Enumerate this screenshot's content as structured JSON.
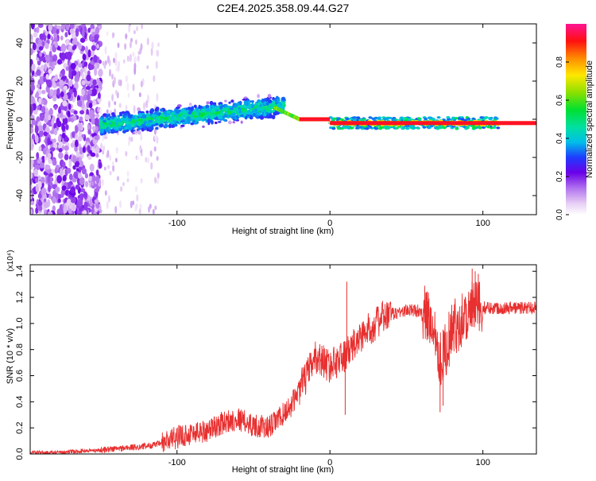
{
  "title": "C2E4.2025.358.09.44.G27",
  "chart_data": [
    {
      "type": "heatmap",
      "title": "",
      "xlabel": "Height of straight line (km)",
      "ylabel": "Frequency (Hz)",
      "xlim": [
        -196,
        135
      ],
      "ylim": [
        -50,
        50
      ],
      "xticks": [
        -100,
        0,
        100
      ],
      "xticklabels": [
        "-100",
        "0",
        "100"
      ],
      "yticks": [
        -40,
        -20,
        0,
        20,
        40
      ],
      "yticklabels": [
        "-40",
        "-20",
        "0",
        "20",
        "40"
      ],
      "colorbar": {
        "label": "Normalized spectral amplitude",
        "range": [
          0,
          1
        ],
        "ticks": [
          0.0,
          0.2,
          0.4,
          0.6,
          0.8
        ],
        "ticklabels": [
          "0.0",
          "0.2",
          "0.4",
          "0.6",
          "0.8"
        ]
      },
      "regions": [
        {
          "name": "noise",
          "x": [
            -196,
            -150
          ],
          "f_range": [
            -50,
            50
          ],
          "amplitude": [
            0.05,
            0.22
          ]
        },
        {
          "name": "sparse",
          "x": [
            -150,
            -112
          ],
          "f_range": [
            -50,
            50
          ],
          "amplitude": [
            0.02,
            0.1
          ]
        },
        {
          "name": "scattered-band",
          "x": [
            -150,
            -30
          ],
          "f_center_start": -3,
          "f_center_end": 7,
          "f_halfwidth": 7,
          "amplitude": [
            0.2,
            0.55
          ]
        },
        {
          "name": "doppler-trace",
          "x": [
            -36,
            -20
          ],
          "f_center_start": 6,
          "f_center_end": 0,
          "amplitude": [
            0.5,
            0.7
          ]
        },
        {
          "name": "tone",
          "x": [
            -20,
            0
          ],
          "f_center": 0,
          "amplitude": 0.95
        },
        {
          "name": "tone",
          "x": [
            0,
            135
          ],
          "f_center": -2,
          "amplitude": 0.95
        },
        {
          "name": "tone-halo",
          "x": [
            0,
            110
          ],
          "f_center": -2,
          "f_halfwidth": 3,
          "amplitude": [
            0.3,
            0.55
          ]
        }
      ]
    },
    {
      "type": "line",
      "title": "",
      "xlabel": "Height of straight line (km)",
      "ylabel": "SNR (10 * v/v)",
      "ylabel_multiplier": "(x10⁴)",
      "xlim": [
        -196,
        135
      ],
      "ylim": [
        0,
        1.45
      ],
      "xticks": [
        -100,
        0,
        100
      ],
      "xticklabels": [
        "-100",
        "0",
        "100"
      ],
      "yticks": [
        0.0,
        0.2,
        0.4,
        0.6,
        0.8,
        1.0,
        1.2,
        1.4
      ],
      "yticklabels": [
        "0.0",
        "0.2",
        "0.4",
        "0.6",
        "0.8",
        "1.0",
        "1.2",
        "1.4"
      ],
      "color": "#e83030",
      "series": [
        {
          "name": "SNR",
          "x": [
            -196,
            -180,
            -165,
            -150,
            -140,
            -130,
            -120,
            -110,
            -100,
            -90,
            -80,
            -70,
            -60,
            -50,
            -40,
            -30,
            -25,
            -20,
            -15,
            -10,
            -5,
            0,
            5,
            10,
            15,
            20,
            25,
            30,
            35,
            40,
            50,
            60,
            65,
            70,
            72,
            75,
            80,
            85,
            90,
            95,
            100,
            110,
            120,
            130,
            135
          ],
          "y": [
            0.01,
            0.01,
            0.02,
            0.03,
            0.04,
            0.05,
            0.06,
            0.08,
            0.13,
            0.16,
            0.18,
            0.24,
            0.27,
            0.22,
            0.2,
            0.31,
            0.38,
            0.5,
            0.6,
            0.74,
            0.72,
            0.67,
            0.72,
            0.75,
            0.82,
            0.9,
            0.95,
            1.0,
            1.05,
            1.07,
            1.1,
            1.1,
            1.03,
            0.9,
            0.72,
            0.78,
            0.95,
            1.02,
            1.08,
            1.12,
            1.12,
            1.12,
            1.12,
            1.12,
            1.13
          ]
        }
      ],
      "spikes": [
        {
          "x": 11,
          "y": 1.32
        },
        {
          "x": 10,
          "y": 0.3
        },
        {
          "x": 93,
          "y": 1.42
        },
        {
          "x": 97,
          "y": 1.38
        },
        {
          "x": 72,
          "y": 0.32
        },
        {
          "x": 74,
          "y": 0.37
        },
        {
          "x": 95,
          "y": 1.4
        }
      ]
    }
  ]
}
